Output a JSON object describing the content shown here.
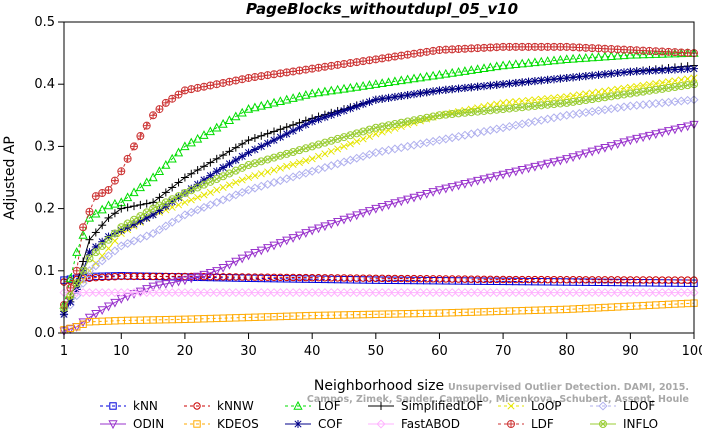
{
  "chart_data": {
    "type": "line",
    "title": "PageBlocks_withoutdupl_05_v10",
    "xlabel": "Neighborhood size",
    "ylabel": "Adjusted AP",
    "xlim": [
      1,
      100
    ],
    "ylim": [
      0,
      0.5
    ],
    "xticks": [
      "1",
      "10",
      "20",
      "30",
      "40",
      "50",
      "60",
      "70",
      "80",
      "90",
      "100"
    ],
    "yticks": [
      "0.0",
      "0.1",
      "0.2",
      "0.3",
      "0.4",
      "0.5"
    ],
    "grid": false,
    "legend_position": "bottom",
    "watermark": {
      "line1": "Unsupervised Outlier Detection. DAMI, 2015.",
      "line2": "Campos, Zimek, Sander, Campello, Micenkova, Schubert, Assent, Houle"
    },
    "series": [
      {
        "name": "kNN",
        "color": "#0000dd",
        "marker": "square",
        "dash": "3,3",
        "points": [
          [
            1,
            0.085
          ],
          [
            3,
            0.088
          ],
          [
            6,
            0.091
          ],
          [
            10,
            0.092
          ],
          [
            20,
            0.09
          ],
          [
            30,
            0.088
          ],
          [
            50,
            0.085
          ],
          [
            70,
            0.083
          ],
          [
            100,
            0.08
          ]
        ]
      },
      {
        "name": "kNNW",
        "color": "#cc0000",
        "marker": "circle",
        "dash": "3,3",
        "points": [
          [
            1,
            0.082
          ],
          [
            3,
            0.086
          ],
          [
            6,
            0.089
          ],
          [
            10,
            0.091
          ],
          [
            20,
            0.091
          ],
          [
            30,
            0.09
          ],
          [
            50,
            0.088
          ],
          [
            70,
            0.086
          ],
          [
            100,
            0.085
          ]
        ]
      },
      {
        "name": "LOF",
        "color": "#00dd00",
        "marker": "triangle",
        "dash": "3,3",
        "points": [
          [
            1,
            0.045
          ],
          [
            3,
            0.13
          ],
          [
            5,
            0.185
          ],
          [
            8,
            0.205
          ],
          [
            10,
            0.21
          ],
          [
            15,
            0.25
          ],
          [
            20,
            0.3
          ],
          [
            25,
            0.33
          ],
          [
            30,
            0.36
          ],
          [
            40,
            0.385
          ],
          [
            50,
            0.4
          ],
          [
            60,
            0.415
          ],
          [
            70,
            0.43
          ],
          [
            80,
            0.44
          ],
          [
            90,
            0.447
          ],
          [
            100,
            0.45
          ]
        ]
      },
      {
        "name": "SimplifiedLOF",
        "color": "#000000",
        "marker": "plus",
        "dash": "",
        "points": [
          [
            1,
            0.035
          ],
          [
            3,
            0.08
          ],
          [
            5,
            0.15
          ],
          [
            8,
            0.185
          ],
          [
            10,
            0.2
          ],
          [
            15,
            0.21
          ],
          [
            20,
            0.25
          ],
          [
            25,
            0.28
          ],
          [
            30,
            0.31
          ],
          [
            40,
            0.345
          ],
          [
            50,
            0.375
          ],
          [
            60,
            0.39
          ],
          [
            70,
            0.4
          ],
          [
            80,
            0.41
          ],
          [
            90,
            0.42
          ],
          [
            100,
            0.43
          ]
        ]
      },
      {
        "name": "LoOP",
        "color": "#e6e600",
        "marker": "x",
        "dash": "3,3",
        "points": [
          [
            1,
            0.04
          ],
          [
            3,
            0.07
          ],
          [
            5,
            0.1
          ],
          [
            10,
            0.16
          ],
          [
            15,
            0.19
          ],
          [
            20,
            0.21
          ],
          [
            30,
            0.25
          ],
          [
            40,
            0.28
          ],
          [
            50,
            0.32
          ],
          [
            60,
            0.35
          ],
          [
            70,
            0.37
          ],
          [
            80,
            0.38
          ],
          [
            90,
            0.395
          ],
          [
            100,
            0.41
          ]
        ]
      },
      {
        "name": "LDOF",
        "color": "#b0b0ee",
        "marker": "diamond",
        "dash": "3,3",
        "points": [
          [
            1,
            0.03
          ],
          [
            3,
            0.06
          ],
          [
            5,
            0.1
          ],
          [
            10,
            0.14
          ],
          [
            15,
            0.16
          ],
          [
            20,
            0.19
          ],
          [
            30,
            0.23
          ],
          [
            40,
            0.26
          ],
          [
            50,
            0.29
          ],
          [
            60,
            0.31
          ],
          [
            70,
            0.33
          ],
          [
            80,
            0.35
          ],
          [
            90,
            0.365
          ],
          [
            100,
            0.375
          ]
        ]
      },
      {
        "name": "ODIN",
        "color": "#9933cc",
        "marker": "dtriangle",
        "dash": "",
        "points": [
          [
            1,
            0.003
          ],
          [
            3,
            0.01
          ],
          [
            5,
            0.025
          ],
          [
            10,
            0.055
          ],
          [
            15,
            0.075
          ],
          [
            20,
            0.085
          ],
          [
            25,
            0.1
          ],
          [
            30,
            0.125
          ],
          [
            40,
            0.165
          ],
          [
            50,
            0.2
          ],
          [
            60,
            0.23
          ],
          [
            70,
            0.255
          ],
          [
            80,
            0.28
          ],
          [
            90,
            0.31
          ],
          [
            100,
            0.335
          ]
        ]
      },
      {
        "name": "KDEOS",
        "color": "#ffaa00",
        "marker": "square",
        "dash": "3,3",
        "points": [
          [
            1,
            0.005
          ],
          [
            3,
            0.01
          ],
          [
            5,
            0.018
          ],
          [
            10,
            0.02
          ],
          [
            20,
            0.022
          ],
          [
            30,
            0.025
          ],
          [
            40,
            0.028
          ],
          [
            50,
            0.03
          ],
          [
            60,
            0.032
          ],
          [
            70,
            0.035
          ],
          [
            80,
            0.038
          ],
          [
            90,
            0.043
          ],
          [
            100,
            0.048
          ]
        ]
      },
      {
        "name": "COF",
        "color": "#000088",
        "marker": "star",
        "dash": "",
        "points": [
          [
            1,
            0.03
          ],
          [
            3,
            0.07
          ],
          [
            5,
            0.13
          ],
          [
            8,
            0.155
          ],
          [
            10,
            0.165
          ],
          [
            15,
            0.19
          ],
          [
            20,
            0.225
          ],
          [
            25,
            0.26
          ],
          [
            30,
            0.29
          ],
          [
            40,
            0.34
          ],
          [
            50,
            0.375
          ],
          [
            60,
            0.39
          ],
          [
            70,
            0.4
          ],
          [
            80,
            0.41
          ],
          [
            90,
            0.42
          ],
          [
            100,
            0.425
          ]
        ]
      },
      {
        "name": "FastABOD",
        "color": "#ffb3ff",
        "marker": "diamond",
        "dash": "",
        "points": [
          [
            1,
            0.065
          ],
          [
            5,
            0.065
          ],
          [
            10,
            0.065
          ],
          [
            20,
            0.065
          ],
          [
            40,
            0.065
          ],
          [
            60,
            0.065
          ],
          [
            80,
            0.065
          ],
          [
            100,
            0.065
          ]
        ]
      },
      {
        "name": "LDF",
        "color": "#cc3333",
        "marker": "circleplus",
        "dash": "3,3",
        "points": [
          [
            1,
            0.045
          ],
          [
            3,
            0.1
          ],
          [
            4,
            0.17
          ],
          [
            6,
            0.22
          ],
          [
            8,
            0.23
          ],
          [
            10,
            0.26
          ],
          [
            12,
            0.3
          ],
          [
            15,
            0.35
          ],
          [
            17,
            0.37
          ],
          [
            20,
            0.39
          ],
          [
            25,
            0.4
          ],
          [
            30,
            0.41
          ],
          [
            40,
            0.425
          ],
          [
            50,
            0.44
          ],
          [
            60,
            0.455
          ],
          [
            70,
            0.46
          ],
          [
            80,
            0.46
          ],
          [
            90,
            0.455
          ],
          [
            100,
            0.45
          ]
        ]
      },
      {
        "name": "INFLO",
        "color": "#99cc33",
        "marker": "circlex",
        "dash": "",
        "points": [
          [
            1,
            0.04
          ],
          [
            3,
            0.08
          ],
          [
            5,
            0.12
          ],
          [
            10,
            0.17
          ],
          [
            15,
            0.2
          ],
          [
            20,
            0.225
          ],
          [
            30,
            0.27
          ],
          [
            40,
            0.3
          ],
          [
            50,
            0.33
          ],
          [
            60,
            0.35
          ],
          [
            70,
            0.36
          ],
          [
            80,
            0.37
          ],
          [
            90,
            0.385
          ],
          [
            100,
            0.4
          ]
        ]
      }
    ]
  },
  "legend_rows": [
    [
      "kNN",
      "kNNW",
      "LOF",
      "SimplifiedLOF",
      "LoOP",
      "LDOF"
    ],
    [
      "ODIN",
      "KDEOS",
      "COF",
      "FastABOD",
      "LDF",
      "INFLO"
    ]
  ]
}
